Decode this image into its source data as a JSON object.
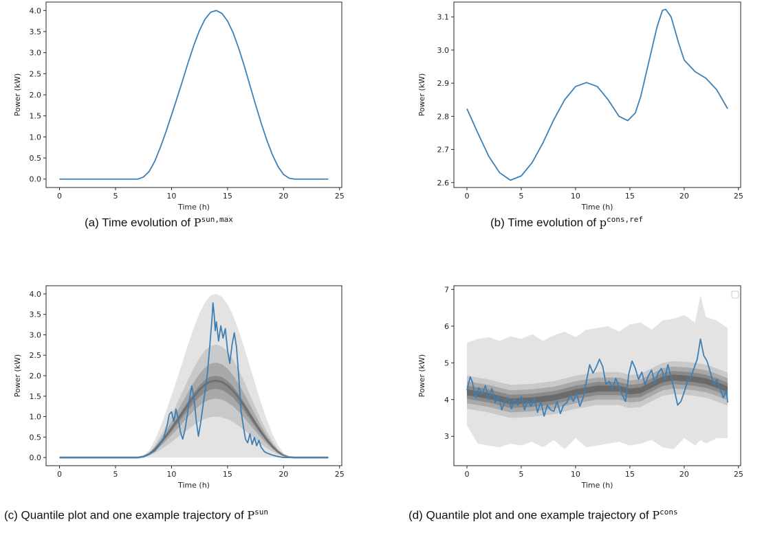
{
  "captions": [
    {
      "prefix": "(a) Time evolution of ",
      "symbol": "P",
      "superscript": "sun,max"
    },
    {
      "prefix": "(b) Time evolution of ",
      "symbol": "p",
      "superscript": "cons,ref"
    },
    {
      "prefix": "(c) Quantile plot and one example trajectory of ",
      "symbol": "P",
      "superscript": "sun"
    },
    {
      "prefix": "(d) Quantile plot and one example trajectory of ",
      "symbol": "P",
      "superscript": "cons"
    }
  ],
  "colors": {
    "line": "#3b7fb6",
    "band_outer": "#e3e3e3",
    "band_2": "#c9c9c9",
    "band_3": "#a9a9a9",
    "band_4": "#8a8a8a",
    "median": "#5d5d5d"
  },
  "chart_data": [
    {
      "type": "line",
      "xlabel": "Time (h)",
      "ylabel": "Power (kW)",
      "xlim": [
        -1.2,
        25.2
      ],
      "ylim": [
        -0.2,
        4.2
      ],
      "xticks": [
        "0",
        "5",
        "10",
        "15",
        "20",
        "25"
      ],
      "yticks": [
        "0.0",
        "0.5",
        "1.0",
        "1.5",
        "2.0",
        "2.5",
        "3.0",
        "3.5",
        "4.0"
      ],
      "series": [
        {
          "x": [
            0,
            1,
            2,
            3,
            4,
            5,
            6,
            7,
            7.5,
            8,
            8.5,
            9,
            9.5,
            10,
            10.5,
            11,
            11.5,
            12,
            12.5,
            13,
            13.5,
            14,
            14.5,
            15,
            15.5,
            16,
            16.5,
            17,
            17.5,
            18,
            18.5,
            19,
            19.5,
            20,
            20.5,
            21,
            22,
            23,
            24
          ],
          "values": [
            0,
            0,
            0,
            0,
            0,
            0,
            0,
            0,
            0.05,
            0.18,
            0.42,
            0.75,
            1.12,
            1.52,
            1.93,
            2.35,
            2.78,
            3.18,
            3.53,
            3.8,
            3.96,
            4.0,
            3.93,
            3.75,
            3.47,
            3.1,
            2.68,
            2.22,
            1.77,
            1.33,
            0.93,
            0.58,
            0.3,
            0.11,
            0.02,
            0,
            0,
            0,
            0
          ]
        }
      ]
    },
    {
      "type": "line",
      "xlabel": "Time (h)",
      "ylabel": "Power (kW)",
      "xlim": [
        -1.2,
        25.2
      ],
      "ylim": [
        2.585,
        3.145
      ],
      "xticks": [
        "0",
        "5",
        "10",
        "15",
        "20",
        "25"
      ],
      "yticks": [
        "2.6",
        "2.7",
        "2.8",
        "2.9",
        "3.0",
        "3.1"
      ],
      "series": [
        {
          "x": [
            0,
            1,
            2,
            3,
            4,
            5,
            6,
            7,
            8,
            9,
            10,
            11,
            12,
            13,
            14,
            14.8,
            15.5,
            16,
            17,
            17.5,
            18,
            18.3,
            18.8,
            19.5,
            20,
            21,
            22,
            23,
            24
          ],
          "values": [
            2.823,
            2.75,
            2.68,
            2.63,
            2.607,
            2.62,
            2.66,
            2.72,
            2.79,
            2.85,
            2.89,
            2.902,
            2.89,
            2.85,
            2.8,
            2.787,
            2.81,
            2.86,
            3.0,
            3.07,
            3.12,
            3.123,
            3.1,
            3.02,
            2.97,
            2.935,
            2.915,
            2.88,
            2.823
          ]
        }
      ]
    },
    {
      "type": "area",
      "xlabel": "Time (h)",
      "ylabel": "Power (kW)",
      "xlim": [
        -1.2,
        25.2
      ],
      "ylim": [
        -0.2,
        4.2
      ],
      "xticks": [
        "0",
        "5",
        "10",
        "15",
        "20",
        "25"
      ],
      "yticks": [
        "0.0",
        "0.5",
        "1.0",
        "1.5",
        "2.0",
        "2.5",
        "3.0",
        "3.5",
        "4.0"
      ],
      "quantile_bands": [
        {
          "lower": 0,
          "upper": 1.0
        },
        {
          "lower": 0.25,
          "upper": 0.69
        },
        {
          "lower": 0.36,
          "upper": 0.58
        },
        {
          "lower": 0.42,
          "upper": 0.5
        }
      ],
      "median_fraction": 0.47,
      "series": [
        {
          "x": [
            0,
            7,
            7.5,
            8,
            8.5,
            9,
            9.3,
            9.6,
            9.8,
            10,
            10.2,
            10.4,
            10.6,
            10.8,
            11,
            11.2,
            11.4,
            11.6,
            11.8,
            12,
            12.2,
            12.4,
            12.6,
            12.8,
            13,
            13.2,
            13.4,
            13.6,
            13.7,
            13.8,
            13.9,
            14,
            14.2,
            14.4,
            14.6,
            14.8,
            15,
            15.2,
            15.4,
            15.6,
            15.8,
            16,
            16.2,
            16.4,
            16.6,
            16.8,
            17,
            17.2,
            17.4,
            17.6,
            17.8,
            18,
            18.3,
            18.6,
            19,
            19.4,
            20,
            20.5,
            24
          ],
          "values": [
            0,
            0,
            0.02,
            0.08,
            0.16,
            0.33,
            0.48,
            0.78,
            1.05,
            1.12,
            0.88,
            1.18,
            0.95,
            0.62,
            0.45,
            0.68,
            1.02,
            1.42,
            1.75,
            1.48,
            0.92,
            0.52,
            0.85,
            1.25,
            1.62,
            2.05,
            2.68,
            3.35,
            3.78,
            3.52,
            3.1,
            3.32,
            2.85,
            3.22,
            2.92,
            3.15,
            2.62,
            2.3,
            2.75,
            3.05,
            2.7,
            1.98,
            1.15,
            0.78,
            0.45,
            0.36,
            0.58,
            0.32,
            0.49,
            0.29,
            0.42,
            0.25,
            0.14,
            0.1,
            0.06,
            0.03,
            0,
            0,
            0
          ]
        }
      ]
    },
    {
      "type": "area",
      "xlabel": "Time (h)",
      "ylabel": "Power (kW)",
      "xlim": [
        -1.2,
        25.2
      ],
      "ylim": [
        2.2,
        7.1
      ],
      "xticks": [
        "0",
        "5",
        "10",
        "15",
        "20",
        "25"
      ],
      "yticks": [
        "3",
        "4",
        "5",
        "6",
        "7"
      ],
      "quantile_bands": [
        {
          "offset_low": -0.45,
          "offset_high": 0.45
        },
        {
          "offset_low": -0.3,
          "offset_high": 0.3
        },
        {
          "offset_low": -0.18,
          "offset_high": 0.18
        },
        {
          "offset_low": -0.08,
          "offset_high": 0.08
        }
      ],
      "outer_band": {
        "x": [
          0,
          1,
          2,
          3,
          4,
          5,
          6,
          7,
          8,
          9,
          10,
          11,
          12,
          13,
          14,
          15,
          16,
          17,
          18,
          19,
          20,
          21,
          21.5,
          22,
          23,
          24
        ],
        "upper": [
          5.55,
          5.65,
          5.7,
          5.6,
          5.72,
          5.65,
          5.78,
          5.6,
          5.75,
          5.85,
          5.7,
          5.9,
          5.95,
          6.0,
          5.85,
          6.05,
          6.1,
          5.9,
          6.15,
          6.2,
          6.3,
          6.1,
          6.85,
          6.25,
          6.15,
          5.95
        ],
        "lower": [
          3.3,
          2.8,
          2.75,
          2.7,
          2.8,
          2.75,
          2.85,
          2.7,
          2.9,
          2.65,
          2.95,
          2.7,
          2.75,
          2.8,
          2.85,
          2.75,
          2.8,
          2.9,
          2.7,
          2.65,
          2.95,
          2.75,
          2.9,
          2.8,
          2.95,
          2.95
        ]
      },
      "median": {
        "x": [
          0,
          2,
          4,
          6,
          8,
          10,
          12,
          14,
          15,
          16,
          17,
          18,
          19,
          20,
          21,
          22,
          23,
          24
        ],
        "values": [
          4.2,
          4.1,
          3.95,
          3.98,
          4.05,
          4.2,
          4.3,
          4.3,
          4.22,
          4.25,
          4.4,
          4.55,
          4.6,
          4.58,
          4.55,
          4.5,
          4.4,
          4.28
        ]
      },
      "series": [
        {
          "x": [
            0,
            0.3,
            0.5,
            0.8,
            1.1,
            1.4,
            1.7,
            2.0,
            2.3,
            2.6,
            2.9,
            3.2,
            3.5,
            3.8,
            4.1,
            4.4,
            4.7,
            5.0,
            5.3,
            5.6,
            5.9,
            6.2,
            6.5,
            6.8,
            7.1,
            7.4,
            7.7,
            8.0,
            8.3,
            8.6,
            8.9,
            9.2,
            9.5,
            9.8,
            10.1,
            10.4,
            10.7,
            11.0,
            11.3,
            11.6,
            11.9,
            12.2,
            12.5,
            12.8,
            13.1,
            13.4,
            13.7,
            14.0,
            14.3,
            14.6,
            14.9,
            15.2,
            15.5,
            15.8,
            16.1,
            16.4,
            16.7,
            17.0,
            17.3,
            17.6,
            17.9,
            18.2,
            18.5,
            18.8,
            19.1,
            19.4,
            19.7,
            20.0,
            20.3,
            20.6,
            20.9,
            21.2,
            21.5,
            21.8,
            22.1,
            22.4,
            22.7,
            23.0,
            23.3,
            23.6,
            23.9,
            24.0
          ],
          "values": [
            4.25,
            4.62,
            4.48,
            4.05,
            4.32,
            4.15,
            4.38,
            4.0,
            4.3,
            3.92,
            4.1,
            3.72,
            3.95,
            4.05,
            3.75,
            4.02,
            3.85,
            4.08,
            3.72,
            3.98,
            3.82,
            4.05,
            3.65,
            3.95,
            3.55,
            3.85,
            3.72,
            3.68,
            3.95,
            3.62,
            3.85,
            3.92,
            4.12,
            3.95,
            4.18,
            3.82,
            4.05,
            4.5,
            4.95,
            4.72,
            4.88,
            5.1,
            4.9,
            4.42,
            4.5,
            4.3,
            4.58,
            4.35,
            4.12,
            3.95,
            4.7,
            5.05,
            4.85,
            4.55,
            4.75,
            4.4,
            4.65,
            4.8,
            4.45,
            4.72,
            4.85,
            4.55,
            4.95,
            4.6,
            4.25,
            3.85,
            3.95,
            4.2,
            4.5,
            4.6,
            4.85,
            5.1,
            5.65,
            5.2,
            5.05,
            4.75,
            4.42,
            4.55,
            4.3,
            4.05,
            4.25,
            3.92
          ]
        }
      ]
    }
  ]
}
